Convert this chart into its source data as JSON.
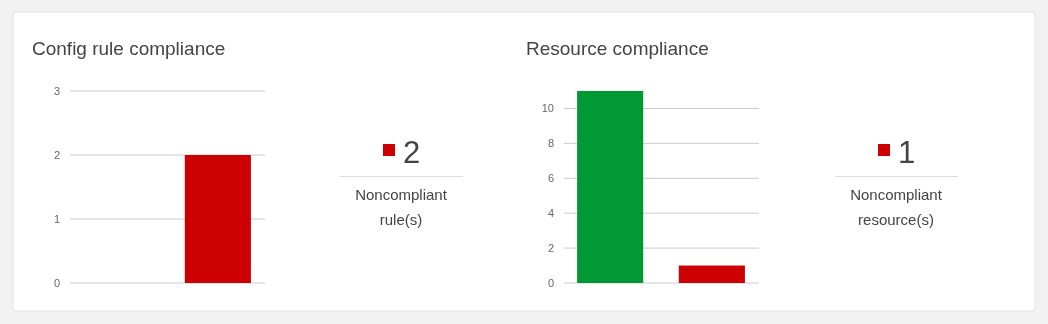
{
  "chart_data": [
    {
      "type": "bar",
      "title": "Config rule compliance",
      "categories": [
        null,
        null
      ],
      "values": [
        0,
        2
      ],
      "colors": [
        "#009933",
        "#cc0000"
      ],
      "ylim": [
        0,
        3
      ],
      "yticks": [
        0,
        1,
        2,
        3
      ],
      "grid": "y"
    },
    {
      "type": "other",
      "categories": [
        "Noncompliant rule(s)"
      ],
      "values": [
        2
      ],
      "colors": [
        "#cc0000"
      ],
      "data_labels": true
    },
    {
      "type": "bar",
      "title": "Resource compliance",
      "categories": [
        null,
        null
      ],
      "values": [
        11,
        1
      ],
      "colors": [
        "#009933",
        "#cc0000"
      ],
      "ylim": [
        0,
        11
      ],
      "yticks": [
        0,
        2,
        4,
        6,
        8,
        10
      ],
      "grid": "y"
    },
    {
      "type": "other",
      "categories": [
        "Noncompliant resource(s)"
      ],
      "values": [
        1
      ],
      "colors": [
        "#cc0000"
      ],
      "data_labels": true
    }
  ]
}
